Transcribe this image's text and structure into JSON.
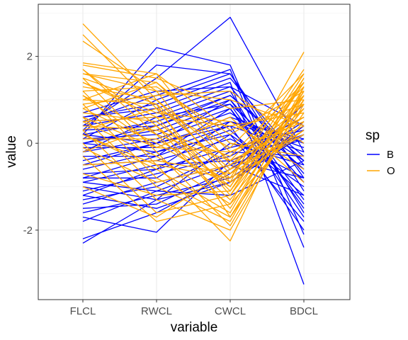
{
  "chart_data": {
    "type": "line",
    "subtype": "parallel-coordinates",
    "title": "",
    "xlabel": "variable",
    "ylabel": "value",
    "categories": [
      "FLCL",
      "RWCL",
      "CWCL",
      "BDCL"
    ],
    "yticks": [
      -2,
      0,
      2
    ],
    "ylim": [
      -3.6,
      3.2
    ],
    "grid": true,
    "legend": {
      "title": "sp",
      "placement": "right",
      "entries": [
        {
          "label": "B",
          "color": "#0000ff"
        },
        {
          "label": "O",
          "color": "#ffa500"
        }
      ]
    },
    "series": [
      {
        "name": "B",
        "color": "#0000ff",
        "lines": [
          [
            -2.3,
            -1.3,
            -0.9,
            0.2
          ],
          [
            -2.2,
            -1.6,
            -0.7,
            0.9
          ],
          [
            -1.8,
            -1.1,
            -1.2,
            -0.4
          ],
          [
            -1.7,
            -2.05,
            -0.4,
            -0.8
          ],
          [
            -1.6,
            -1.2,
            -0.8,
            0.3
          ],
          [
            -1.5,
            -1.4,
            -0.6,
            0.5
          ],
          [
            -1.4,
            -0.9,
            -0.5,
            0.1
          ],
          [
            -1.3,
            -1.0,
            -0.2,
            -0.3
          ],
          [
            -1.2,
            -1.5,
            -0.9,
            0.4
          ],
          [
            -1.1,
            -0.7,
            -0.3,
            0.6
          ],
          [
            -1.0,
            -1.3,
            0.0,
            -0.5
          ],
          [
            -0.9,
            -0.5,
            -0.4,
            0.2
          ],
          [
            -0.8,
            -0.8,
            0.2,
            -1.0
          ],
          [
            -0.7,
            -0.6,
            -0.1,
            0.3
          ],
          [
            -0.6,
            -0.2,
            0.4,
            -0.2
          ],
          [
            -0.5,
            -0.4,
            0.1,
            -0.8
          ],
          [
            -0.4,
            0.0,
            0.5,
            0.1
          ],
          [
            -0.3,
            -0.3,
            0.3,
            -1.2
          ],
          [
            -0.2,
            0.1,
            0.7,
            -0.4
          ],
          [
            -0.1,
            -0.1,
            0.6,
            0.0
          ],
          [
            0.0,
            0.3,
            0.9,
            -0.6
          ],
          [
            0.1,
            0.2,
            0.8,
            -1.4
          ],
          [
            0.2,
            0.5,
            1.1,
            -0.3
          ],
          [
            0.3,
            0.4,
            1.0,
            -0.9
          ],
          [
            0.4,
            0.7,
            1.3,
            -0.7
          ],
          [
            0.5,
            0.6,
            1.2,
            -1.6
          ],
          [
            0.6,
            0.9,
            1.5,
            -0.5
          ],
          [
            0.3,
            1.8,
            1.6,
            -1.1
          ],
          [
            0.2,
            2.2,
            1.8,
            -2.1
          ],
          [
            0.4,
            1.5,
            2.9,
            -0.2
          ],
          [
            0.5,
            1.1,
            1.7,
            -2.4
          ],
          [
            0.6,
            0.8,
            1.4,
            -3.25
          ],
          [
            0.0,
            -0.2,
            0.2,
            -1.8
          ],
          [
            -0.5,
            0.0,
            1.0,
            -1.3
          ],
          [
            0.1,
            1.0,
            1.6,
            -0.8
          ],
          [
            -0.2,
            0.6,
            0.9,
            -1.5
          ],
          [
            0.2,
            0.0,
            0.4,
            -2.0
          ],
          [
            -0.8,
            -0.3,
            0.8,
            -1.7
          ],
          [
            -1.2,
            -0.6,
            0.5,
            -0.1
          ],
          [
            0.7,
            1.2,
            1.3,
            0.4
          ],
          [
            -0.9,
            -1.1,
            -0.5,
            -1.2
          ],
          [
            0.0,
            0.4,
            1.1,
            -0.4
          ]
        ]
      },
      {
        "name": "O",
        "color": "#ffa500",
        "lines": [
          [
            2.75,
            1.0,
            -0.7,
            0.3
          ],
          [
            2.5,
            0.8,
            -1.2,
            1.4
          ],
          [
            2.35,
            1.2,
            -0.9,
            2.1
          ],
          [
            1.85,
            1.6,
            -0.5,
            0.9
          ],
          [
            1.7,
            0.4,
            -1.5,
            1.2
          ],
          [
            1.6,
            1.4,
            -0.2,
            0.6
          ],
          [
            1.5,
            -0.2,
            -1.9,
            1.0
          ],
          [
            1.4,
            0.6,
            -1.1,
            1.5
          ],
          [
            1.3,
            1.0,
            -0.4,
            0.4
          ],
          [
            1.2,
            -0.5,
            -2.25,
            1.3
          ],
          [
            1.1,
            0.2,
            -1.3,
            0.8
          ],
          [
            1.0,
            0.9,
            -0.6,
            1.1
          ],
          [
            0.9,
            -0.8,
            -1.7,
            0.7
          ],
          [
            0.8,
            0.0,
            -1.0,
            1.6
          ],
          [
            0.7,
            0.5,
            -0.8,
            0.2
          ],
          [
            0.6,
            -1.0,
            -1.8,
            1.2
          ],
          [
            0.5,
            -0.3,
            -1.4,
            0.5
          ],
          [
            0.4,
            0.3,
            -0.3,
            1.4
          ],
          [
            0.3,
            -1.3,
            -2.0,
            0.9
          ],
          [
            0.2,
            -0.6,
            -1.6,
            1.3
          ],
          [
            0.1,
            0.1,
            -0.9,
            0.3
          ],
          [
            0.0,
            -1.6,
            -1.2,
            1.0
          ],
          [
            -0.1,
            -0.9,
            -0.5,
            0.6
          ],
          [
            -0.3,
            -1.8,
            -1.4,
            1.5
          ],
          [
            -0.5,
            -0.4,
            -0.7,
            0.8
          ],
          [
            -0.7,
            -1.2,
            -1.1,
            1.1
          ],
          [
            -1.0,
            -1.7,
            -0.6,
            0.2
          ],
          [
            1.8,
            1.5,
            0.8,
            1.0
          ],
          [
            1.6,
            1.2,
            1.0,
            0.4
          ],
          [
            1.4,
            0.7,
            0.5,
            -0.6
          ],
          [
            1.2,
            1.3,
            0.2,
            1.2
          ],
          [
            0.9,
            1.1,
            1.2,
            0.0
          ],
          [
            0.6,
            -0.1,
            0.6,
            -0.9
          ],
          [
            0.3,
            0.8,
            -0.1,
            1.6
          ],
          [
            1.0,
            1.6,
            0.3,
            0.9
          ],
          [
            1.7,
            0.2,
            -0.4,
            1.3
          ],
          [
            0.8,
            1.4,
            0.0,
            -0.3
          ],
          [
            0.5,
            0.6,
            0.4,
            0.7
          ],
          [
            -0.2,
            0.4,
            -1.0,
            1.4
          ],
          [
            1.1,
            -0.1,
            -0.2,
            0.5
          ],
          [
            1.5,
            0.9,
            -1.7,
            1.1
          ],
          [
            0.2,
            -0.5,
            -0.8,
            1.7
          ]
        ]
      }
    ]
  }
}
